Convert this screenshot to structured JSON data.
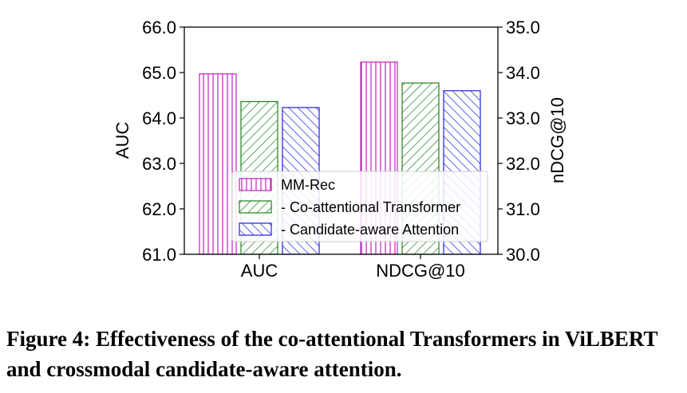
{
  "chart_data": {
    "type": "bar",
    "categories": [
      "AUC",
      "NDCG@10"
    ],
    "series": [
      {
        "name": "MM-Rec",
        "color": "#c020c0",
        "hatch": "vertical",
        "values": [
          64.97,
          34.23
        ]
      },
      {
        "name": "- Co-attentional Transformer",
        "color": "#208020",
        "hatch": "diagonal-right",
        "values": [
          64.36,
          33.77
        ]
      },
      {
        "name": "- Candidate-aware Attention",
        "color": "#2020e0",
        "hatch": "diagonal-left",
        "values": [
          64.23,
          33.6
        ]
      }
    ],
    "ylabel": "AUC",
    "y2label": "nDCG@10",
    "ylim": [
      61.0,
      66.0
    ],
    "y2lim": [
      30.0,
      35.0
    ],
    "yticks": [
      "61.0",
      "62.0",
      "63.0",
      "64.0",
      "65.0",
      "66.0"
    ],
    "y2ticks": [
      "30.0",
      "31.0",
      "32.0",
      "33.0",
      "34.0",
      "35.0"
    ],
    "bar_axis": [
      "left",
      "right"
    ],
    "legend_position": "lower-center",
    "grid": false
  },
  "caption": "Figure 4: Effectiveness of the co-attentional Transformers in ViLBERT and crossmodal candidate-aware attention."
}
